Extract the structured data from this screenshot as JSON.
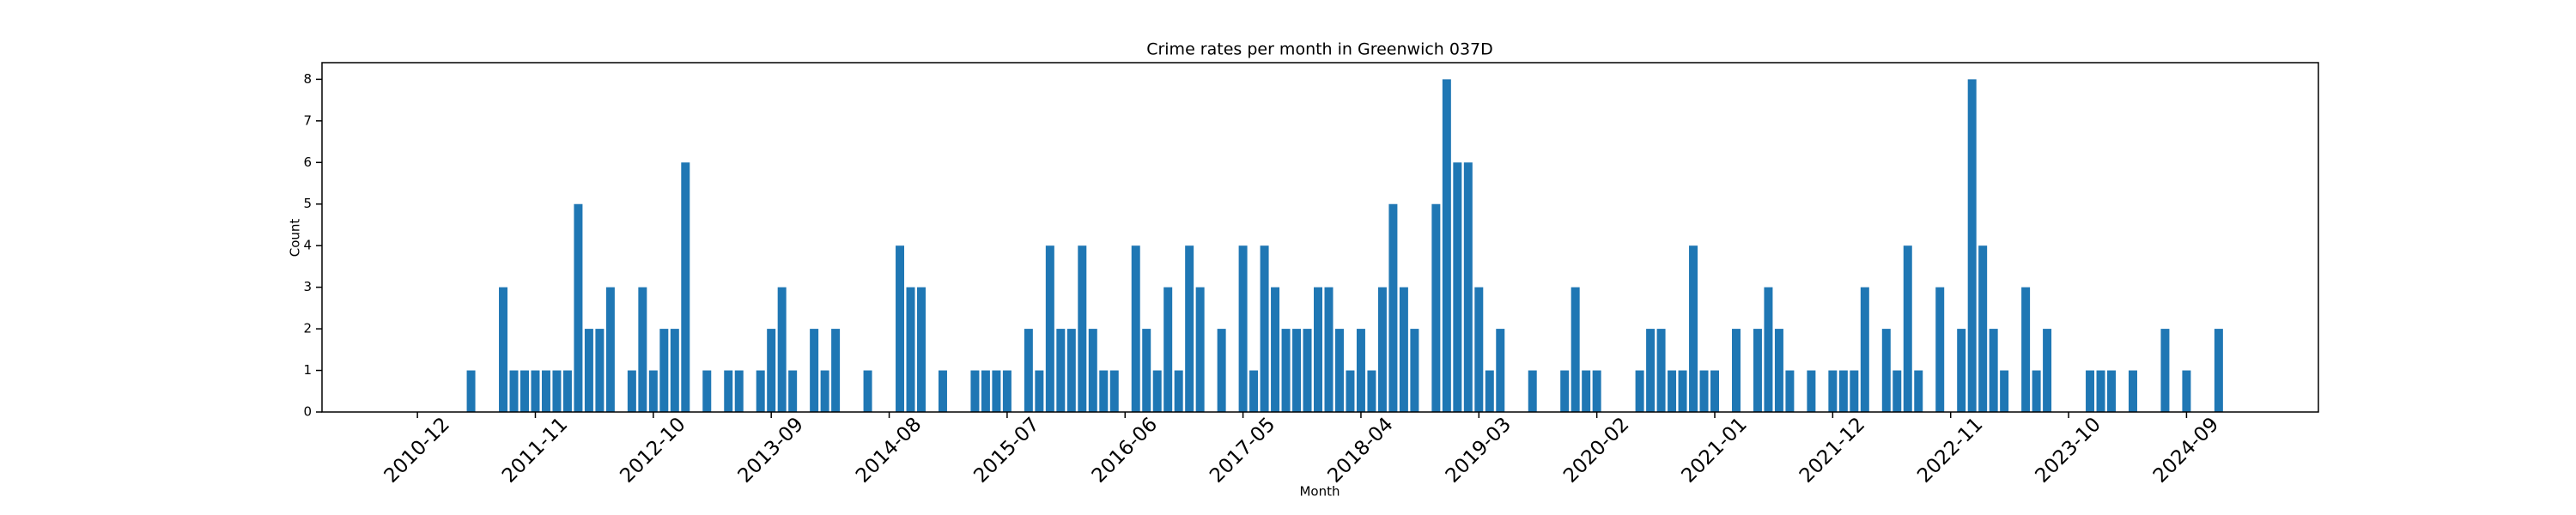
{
  "chart_data": {
    "type": "bar",
    "title": "Crime rates per month in Greenwich 037D",
    "x_label": "Month",
    "y_label": "Count",
    "color": "#1f77b4",
    "categories": [
      "2010-12",
      null,
      null,
      null,
      null,
      null,
      null,
      null,
      null,
      null,
      null,
      "2011-11",
      null,
      null,
      null,
      null,
      null,
      null,
      null,
      null,
      null,
      null,
      "2012-10",
      null,
      null,
      null,
      null,
      null,
      null,
      null,
      null,
      null,
      null,
      "2013-09",
      null,
      null,
      null,
      null,
      null,
      null,
      null,
      null,
      null,
      null,
      "2014-08",
      null,
      null,
      null,
      null,
      null,
      null,
      null,
      null,
      null,
      null,
      "2015-07",
      null,
      null,
      null,
      null,
      null,
      null,
      null,
      null,
      null,
      null,
      "2016-06",
      null,
      null,
      null,
      null,
      null,
      null,
      null,
      null,
      null,
      null,
      "2017-05",
      null,
      null,
      null,
      null,
      null,
      null,
      null,
      null,
      null,
      null,
      "2018-04",
      null,
      null,
      null,
      null,
      null,
      null,
      null,
      null,
      null,
      null,
      "2019-03",
      null,
      null,
      null,
      null,
      null,
      null,
      null,
      null,
      null,
      null,
      "2020-02",
      null,
      null,
      null,
      null,
      null,
      null,
      null,
      null,
      null,
      null,
      "2021-01",
      null,
      null,
      null,
      null,
      null,
      null,
      null,
      null,
      null,
      null,
      "2021-12",
      null,
      null,
      null,
      null,
      null,
      null,
      null,
      null,
      null,
      null,
      "2022-11",
      null,
      null,
      null,
      null,
      null,
      null,
      null,
      null,
      null,
      null,
      "2023-10",
      null,
      null,
      null,
      null,
      null,
      null,
      null,
      null,
      null,
      null,
      "2024-09",
      null,
      null,
      null
    ],
    "values": [
      0,
      0,
      0,
      0,
      0,
      1,
      0,
      0,
      3,
      1,
      1,
      1,
      1,
      1,
      1,
      5,
      2,
      2,
      3,
      0,
      1,
      3,
      1,
      2,
      2,
      6,
      0,
      1,
      0,
      1,
      1,
      0,
      1,
      2,
      3,
      1,
      0,
      2,
      1,
      2,
      0,
      0,
      1,
      0,
      0,
      4,
      3,
      3,
      0,
      1,
      0,
      0,
      1,
      1,
      1,
      1,
      0,
      2,
      1,
      4,
      2,
      2,
      4,
      2,
      1,
      1,
      0,
      4,
      2,
      1,
      3,
      1,
      4,
      3,
      0,
      2,
      0,
      4,
      1,
      4,
      3,
      2,
      2,
      2,
      3,
      3,
      2,
      1,
      2,
      1,
      3,
      5,
      3,
      2,
      0,
      5,
      8,
      6,
      6,
      3,
      1,
      2,
      0,
      0,
      1,
      0,
      0,
      1,
      3,
      1,
      1,
      0,
      0,
      0,
      1,
      2,
      2,
      1,
      1,
      4,
      1,
      1,
      0,
      2,
      0,
      2,
      3,
      2,
      1,
      0,
      1,
      0,
      1,
      1,
      1,
      3,
      0,
      2,
      1,
      4,
      1,
      0,
      3,
      0,
      2,
      8,
      4,
      2,
      1,
      0,
      3,
      1,
      2,
      0,
      0,
      0,
      1,
      1,
      1,
      0,
      1,
      0,
      0,
      2,
      0,
      1,
      0,
      0,
      2
    ],
    "ylim": [
      0,
      8.4
    ],
    "yticks": [
      0,
      1,
      2,
      3,
      4,
      5,
      6,
      7,
      8
    ]
  }
}
